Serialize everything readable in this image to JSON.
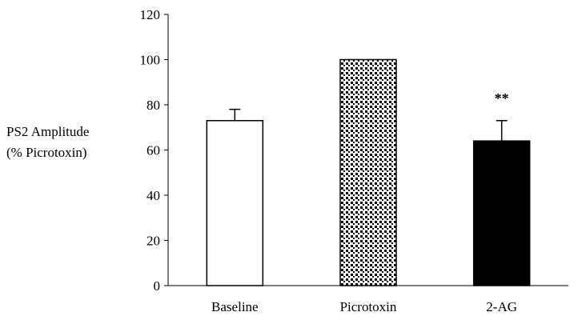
{
  "chart_data": {
    "type": "bar",
    "title": "",
    "xlabel": "",
    "ylabel_lines": [
      "PS2 Amplitude",
      "(% Picrotoxin)"
    ],
    "categories": [
      "Baseline",
      "Picrotoxin",
      "2-AG"
    ],
    "values": [
      73,
      100,
      64
    ],
    "errors": [
      5,
      0,
      9
    ],
    "annotations": [
      "",
      "",
      "**"
    ],
    "fills": [
      "white",
      "dots",
      "black"
    ],
    "ylim": [
      0,
      120
    ],
    "yticks": [
      0,
      20,
      40,
      60,
      80,
      100,
      120
    ],
    "grid": false,
    "legend": "none"
  }
}
